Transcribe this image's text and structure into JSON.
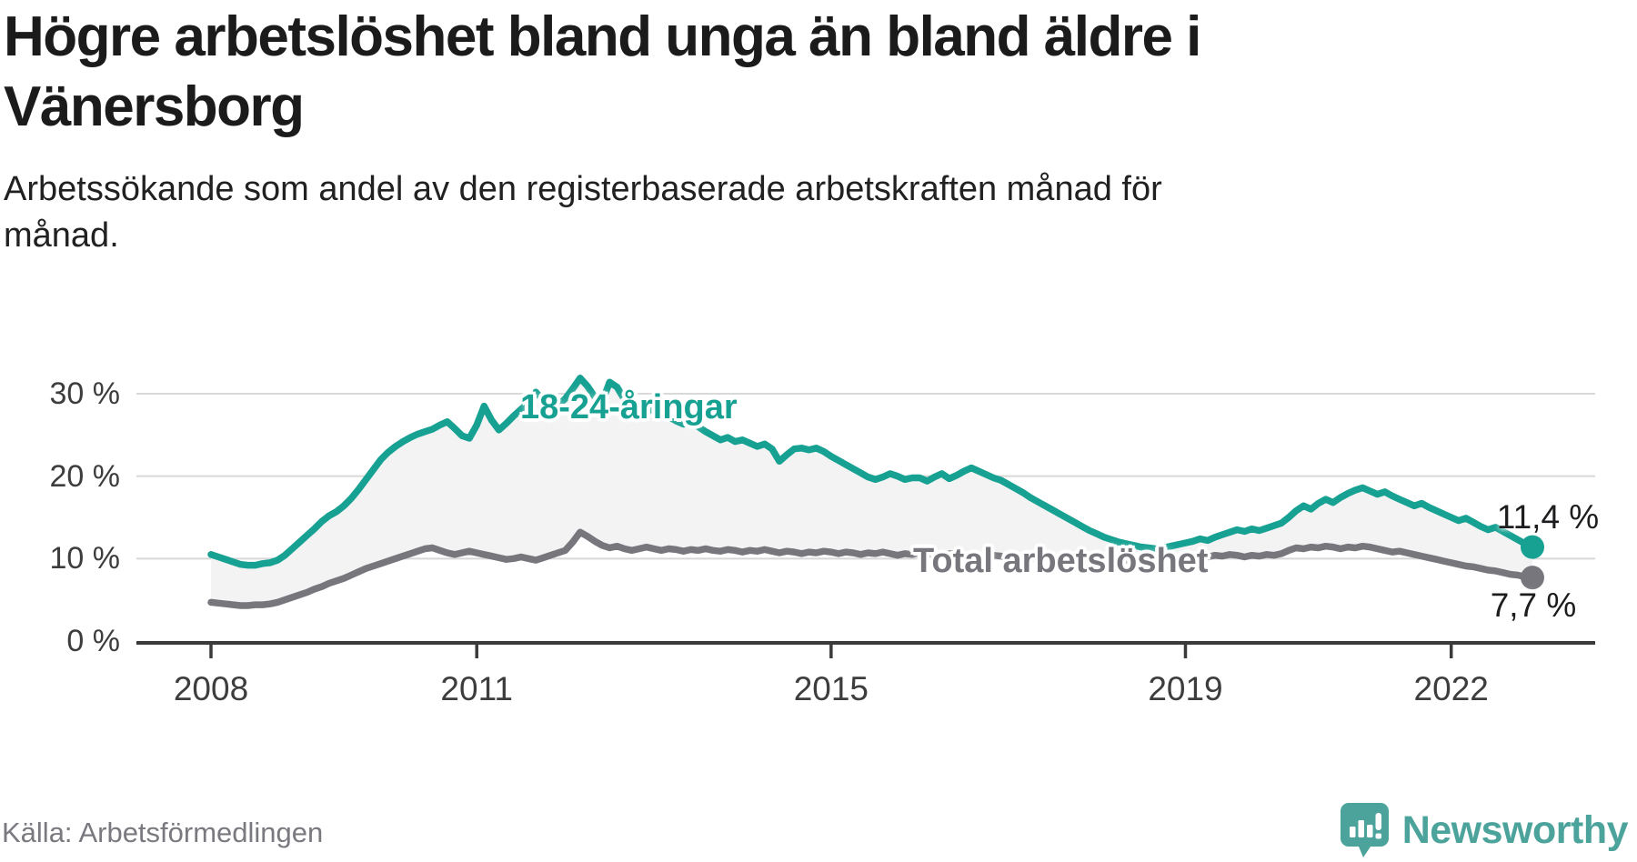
{
  "header": {
    "title_lines": [
      "Högre arbetslöshet bland unga än bland äldre i",
      "Vänersborg"
    ],
    "subtitle_lines": [
      "Arbetssökande som andel av den registerbaserade arbetskraften månad för",
      "månad."
    ]
  },
  "chart_data": {
    "type": "line",
    "title": "Högre arbetslöshet bland unga än bland äldre i Vänersborg",
    "subtitle": "Arbetssökande som andel av den registerbaserade arbetskraften månad för månad.",
    "unit": "%",
    "x_start": "2008-01",
    "x_end": "2022-12",
    "x_interval": "month",
    "x_tick_years": [
      2008,
      2011,
      2015,
      2019,
      2022
    ],
    "x_tick_labels": [
      "2008",
      "2011",
      "2015",
      "2019",
      "2022"
    ],
    "y_tick_values": [
      0,
      10,
      20,
      30
    ],
    "y_tick_labels": [
      "0 %",
      "10 %",
      "20 %",
      "30 %"
    ],
    "ylim": [
      0,
      33
    ],
    "grid": true,
    "legend_position": "inline-labels",
    "series": [
      {
        "name": "18-24-åringar",
        "color": "#16a192",
        "end_label": "11,4 %",
        "end_value": 11.4,
        "values": [
          10.5,
          10.2,
          9.9,
          9.6,
          9.3,
          9.2,
          9.2,
          9.4,
          9.5,
          9.8,
          10.4,
          11.2,
          12.0,
          12.8,
          13.6,
          14.5,
          15.2,
          15.7,
          16.4,
          17.3,
          18.4,
          19.6,
          20.8,
          22.0,
          22.9,
          23.6,
          24.2,
          24.7,
          25.1,
          25.4,
          25.7,
          26.2,
          26.6,
          25.8,
          24.9,
          24.6,
          26.2,
          28.5,
          26.8,
          25.6,
          26.4,
          27.3,
          28.1,
          28.9,
          30.2,
          29.2,
          28.3,
          28.6,
          29.4,
          30.6,
          31.9,
          30.9,
          29.6,
          29.0,
          31.4,
          30.8,
          29.3,
          28.2,
          27.6,
          27.9,
          28.1,
          27.6,
          27.2,
          26.7,
          26.3,
          26.5,
          26.0,
          25.4,
          24.9,
          24.4,
          24.7,
          24.2,
          24.4,
          24.0,
          23.6,
          23.9,
          23.3,
          21.8,
          22.6,
          23.3,
          23.4,
          23.2,
          23.4,
          23.0,
          22.4,
          21.9,
          21.4,
          20.9,
          20.4,
          19.9,
          19.6,
          19.9,
          20.3,
          20.0,
          19.6,
          19.8,
          19.8,
          19.4,
          19.9,
          20.3,
          19.7,
          20.1,
          20.6,
          21.0,
          20.6,
          20.2,
          19.8,
          19.5,
          19.0,
          18.5,
          18.0,
          17.4,
          16.9,
          16.4,
          15.9,
          15.4,
          14.9,
          14.4,
          13.9,
          13.4,
          13.0,
          12.6,
          12.3,
          12.0,
          11.8,
          11.6,
          11.4,
          11.3,
          11.2,
          11.3,
          11.5,
          11.7,
          11.9,
          12.1,
          12.4,
          12.2,
          12.6,
          12.9,
          13.2,
          13.5,
          13.3,
          13.6,
          13.4,
          13.7,
          14.0,
          14.3,
          15.0,
          15.8,
          16.4,
          16.0,
          16.7,
          17.2,
          16.8,
          17.4,
          17.9,
          18.3,
          18.6,
          18.2,
          17.8,
          18.1,
          17.6,
          17.2,
          16.8,
          16.4,
          16.7,
          16.2,
          15.8,
          15.4,
          15.0,
          14.6,
          14.9,
          14.4,
          13.9,
          13.5,
          13.8,
          13.3,
          12.8,
          12.3,
          11.8,
          11.4
        ]
      },
      {
        "name": "Total arbetslöshet",
        "color": "#77767c",
        "end_label": "7,7 %",
        "end_value": 7.7,
        "values": [
          4.7,
          4.6,
          4.5,
          4.4,
          4.3,
          4.3,
          4.4,
          4.4,
          4.5,
          4.7,
          5.0,
          5.3,
          5.6,
          5.9,
          6.3,
          6.6,
          7.0,
          7.3,
          7.6,
          8.0,
          8.4,
          8.8,
          9.1,
          9.4,
          9.7,
          10.0,
          10.3,
          10.6,
          10.9,
          11.2,
          11.3,
          11.0,
          10.7,
          10.5,
          10.7,
          10.9,
          10.7,
          10.5,
          10.3,
          10.1,
          9.9,
          10.0,
          10.2,
          10.0,
          9.8,
          10.1,
          10.4,
          10.7,
          11.0,
          12.0,
          13.2,
          12.7,
          12.1,
          11.6,
          11.3,
          11.5,
          11.2,
          11.0,
          11.2,
          11.4,
          11.2,
          11.0,
          11.2,
          11.1,
          10.9,
          11.1,
          11.0,
          11.2,
          11.0,
          10.9,
          11.1,
          11.0,
          10.8,
          11.0,
          10.9,
          11.1,
          10.9,
          10.7,
          10.9,
          10.8,
          10.6,
          10.8,
          10.7,
          10.9,
          10.8,
          10.6,
          10.8,
          10.7,
          10.5,
          10.7,
          10.6,
          10.8,
          10.6,
          10.4,
          10.6,
          10.5,
          10.7,
          10.5,
          10.6,
          10.4,
          10.6,
          10.5,
          10.3,
          10.5,
          10.4,
          10.2,
          10.4,
          10.3,
          10.1,
          10.3,
          10.2,
          10.0,
          10.2,
          10.1,
          9.9,
          10.1,
          10.0,
          9.8,
          10.0,
          9.9,
          9.7,
          9.9,
          9.8,
          9.6,
          9.8,
          9.7,
          9.9,
          9.8,
          10.0,
          9.9,
          10.1,
          10.0,
          10.2,
          10.1,
          10.3,
          10.2,
          10.4,
          10.3,
          10.5,
          10.4,
          10.2,
          10.4,
          10.3,
          10.5,
          10.4,
          10.6,
          11.0,
          11.3,
          11.2,
          11.4,
          11.3,
          11.5,
          11.4,
          11.2,
          11.4,
          11.3,
          11.5,
          11.4,
          11.2,
          11.0,
          10.8,
          10.9,
          10.7,
          10.5,
          10.3,
          10.1,
          9.9,
          9.7,
          9.5,
          9.3,
          9.1,
          9.0,
          8.8,
          8.6,
          8.5,
          8.3,
          8.1,
          8.0,
          7.8,
          7.7
        ]
      }
    ],
    "band_fill_between_series": true
  },
  "colors": {
    "young": "#16a192",
    "total": "#77767c",
    "band": "#f3f3f4",
    "grid": "#d8d8d8",
    "axis": "#3a3a3a",
    "brand_teal": "#4ba39b"
  },
  "footer": {
    "source": "Källa: Arbetsförmedlingen",
    "brand": "Newsworthy"
  }
}
